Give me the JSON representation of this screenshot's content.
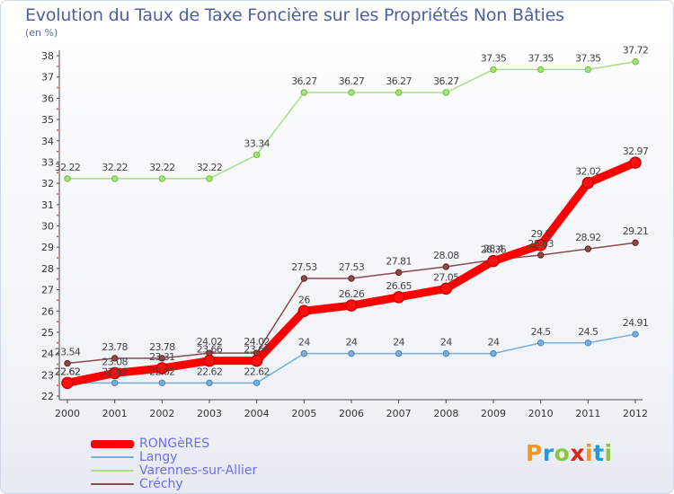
{
  "title": "Evolution du Taux de Taxe Foncière sur les Propriétés Non Bâties",
  "unit": "(en %)",
  "logo": [
    "P",
    "r",
    "o",
    "x",
    "i",
    "t",
    "i"
  ],
  "logo_colors": [
    "#f7941d",
    "#2a9ad6",
    "#8cc63f",
    "#e2231a",
    "#f7941d",
    "#2a9ad6",
    "#8cc63f"
  ],
  "chart_data": {
    "type": "line",
    "title": "Evolution du Taux de Taxe Foncière sur les Propriétés Non Bâties",
    "ylabel": "(en %)",
    "xlabel": "",
    "x": [
      2000,
      2001,
      2002,
      2003,
      2004,
      2005,
      2006,
      2007,
      2008,
      2009,
      2010,
      2011,
      2012
    ],
    "ylim": [
      22,
      38
    ],
    "yticks": [
      22,
      23,
      24,
      25,
      26,
      27,
      28,
      29,
      30,
      31,
      32,
      33,
      34,
      35,
      36,
      37,
      38
    ],
    "grid": false,
    "legend_position": "bottom-left",
    "series": [
      {
        "name": "RONGèRES",
        "color": "#ff0000",
        "marker": "#cc0000",
        "values": [
          22.62,
          23.08,
          23.31,
          23.66,
          23.66,
          26,
          26.26,
          26.65,
          27.05,
          28.35,
          29.1,
          32.02,
          32.97
        ],
        "labels": [
          "22.62",
          "23.08",
          "23.31",
          "23.66",
          "23.66",
          "26",
          "26.26",
          "26.65",
          "27.05",
          "28.35",
          "29.1",
          "32.02",
          "32.97"
        ]
      },
      {
        "name": "Langy",
        "color": "#7aaed8",
        "marker": "#4a84bd",
        "values": [
          22.62,
          22.62,
          22.62,
          22.62,
          22.62,
          24,
          24,
          24,
          24,
          24,
          24.5,
          24.5,
          24.91
        ],
        "labels": [
          "22.62",
          "22.62",
          "22.62",
          "22.62",
          "22.62",
          "24",
          "24",
          "24",
          "24",
          "24",
          "24.5",
          "24.5",
          "24.91"
        ]
      },
      {
        "name": "Varennes-sur-Allier",
        "color": "#a8e07c",
        "marker": "#6cbf3a",
        "values": [
          32.22,
          32.22,
          32.22,
          32.22,
          33.34,
          36.27,
          36.27,
          36.27,
          36.27,
          37.35,
          37.35,
          37.35,
          37.72
        ],
        "labels": [
          "32.22",
          "32.22",
          "32.22",
          "32.22",
          "33.34",
          "36.27",
          "36.27",
          "36.27",
          "36.27",
          "37.35",
          "37.35",
          "37.35",
          "37.72"
        ]
      },
      {
        "name": "Créchy",
        "color": "#8b4a4a",
        "marker": "#6b1f1f",
        "values": [
          23.54,
          23.78,
          23.78,
          24.02,
          24.02,
          27.53,
          27.53,
          27.81,
          28.08,
          28.4,
          28.63,
          28.92,
          29.21
        ],
        "labels": [
          "23.54",
          "23.78",
          "23.78",
          "24.02",
          "24.02",
          "27.53",
          "27.53",
          "27.81",
          "28.08",
          "28.4",
          "28.63",
          "28.92",
          "29.21"
        ]
      }
    ]
  }
}
